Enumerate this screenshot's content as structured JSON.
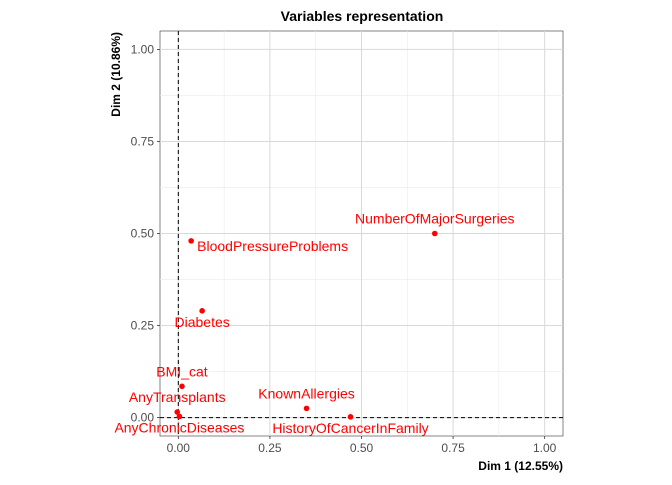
{
  "chart_data": {
    "type": "scatter",
    "title": "Variables representation",
    "xlabel": "Dim 1 (12.55%)",
    "ylabel": "Dim 2 (10.86%)",
    "xlim": [
      -0.05,
      1.05
    ],
    "ylim": [
      -0.05,
      1.05
    ],
    "xticks": [
      0.0,
      0.25,
      0.5,
      0.75,
      1.0
    ],
    "yticks": [
      0.0,
      0.25,
      0.5,
      0.75,
      1.0
    ],
    "xtick_labels": [
      "0.00",
      "0.25",
      "0.50",
      "0.75",
      "1.00"
    ],
    "ytick_labels": [
      "0.00",
      "0.25",
      "0.50",
      "0.75",
      "1.00"
    ],
    "grid": true,
    "reference_lines": {
      "x": 0,
      "y": 0,
      "style": "dashed"
    },
    "point_color": "#ff0000",
    "points": [
      {
        "name": "NumberOfMajorSurgeries",
        "x": 0.7,
        "y": 0.5,
        "label_pos": "above"
      },
      {
        "name": "BloodPressureProblems",
        "x": 0.035,
        "y": 0.48,
        "label_pos": "right"
      },
      {
        "name": "Diabetes",
        "x": 0.065,
        "y": 0.29,
        "label_pos": "below"
      },
      {
        "name": "BMI_cat",
        "x": 0.01,
        "y": 0.085,
        "label_pos": "above"
      },
      {
        "name": "KnownAllergies",
        "x": 0.35,
        "y": 0.025,
        "label_pos": "above"
      },
      {
        "name": "AnyTransplants",
        "x": -0.003,
        "y": 0.015,
        "label_pos": "above"
      },
      {
        "name": "AnyChronicDiseases",
        "x": 0.003,
        "y": 0.003,
        "label_pos": "below"
      },
      {
        "name": "HistoryOfCancerInFamily",
        "x": 0.47,
        "y": 0.002,
        "label_pos": "below"
      }
    ]
  }
}
